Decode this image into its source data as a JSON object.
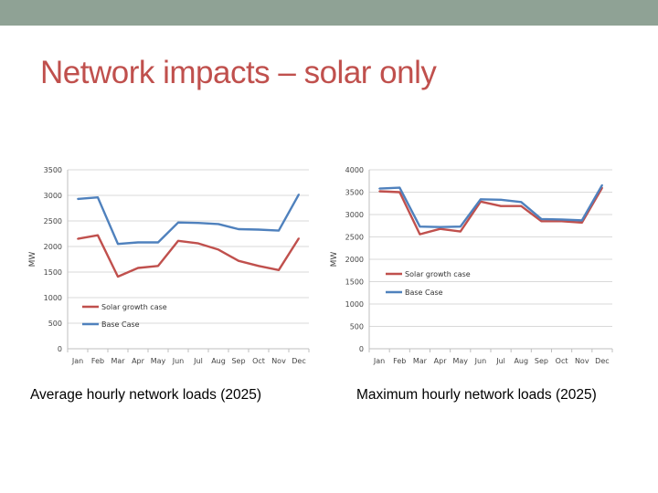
{
  "slide": {
    "title": "Network impacts – solar only"
  },
  "colors": {
    "topbar": "#8FA295",
    "title": "#C0504D",
    "solar": "#C0504D",
    "base": "#4F81BD",
    "grid": "#D9D9D9"
  },
  "chart_data": [
    {
      "type": "line",
      "caption": "Average hourly network loads (2025)",
      "ylabel": "MW",
      "categories": [
        "Jan",
        "Feb",
        "Mar",
        "Apr",
        "May",
        "Jun",
        "Jul",
        "Aug",
        "Sep",
        "Oct",
        "Nov",
        "Dec"
      ],
      "ylim": [
        0,
        3500
      ],
      "yticks": [
        0,
        500,
        1000,
        1500,
        2000,
        2500,
        3000,
        3500
      ],
      "grid": true,
      "series": [
        {
          "name": "Solar growth case",
          "color": "#C0504D",
          "values": [
            2150,
            2220,
            1410,
            1580,
            1620,
            2110,
            2060,
            1940,
            1720,
            1620,
            1540,
            2160
          ]
        },
        {
          "name": "Base Case",
          "color": "#4F81BD",
          "values": [
            2930,
            2960,
            2050,
            2080,
            2080,
            2470,
            2460,
            2440,
            2340,
            2330,
            2310,
            3020
          ]
        }
      ],
      "legend_position": "bottom-left"
    },
    {
      "type": "line",
      "caption": "Maximum hourly network loads (2025)",
      "ylabel": "MW",
      "categories": [
        "Jan",
        "Feb",
        "Mar",
        "Apr",
        "May",
        "Jun",
        "Jul",
        "Aug",
        "Sep",
        "Oct",
        "Nov",
        "Dec"
      ],
      "ylim": [
        0,
        4000
      ],
      "yticks": [
        0,
        500,
        1000,
        1500,
        2000,
        2500,
        3000,
        3500,
        4000
      ],
      "grid": true,
      "series": [
        {
          "name": "Solar growth case",
          "color": "#C0504D",
          "values": [
            3520,
            3500,
            2560,
            2680,
            2620,
            3290,
            3190,
            3190,
            2850,
            2850,
            2820,
            3600
          ]
        },
        {
          "name": "Base Case",
          "color": "#4F81BD",
          "values": [
            3580,
            3600,
            2730,
            2720,
            2730,
            3340,
            3330,
            3280,
            2900,
            2890,
            2870,
            3660
          ]
        }
      ],
      "legend_position": "middle-left"
    }
  ]
}
